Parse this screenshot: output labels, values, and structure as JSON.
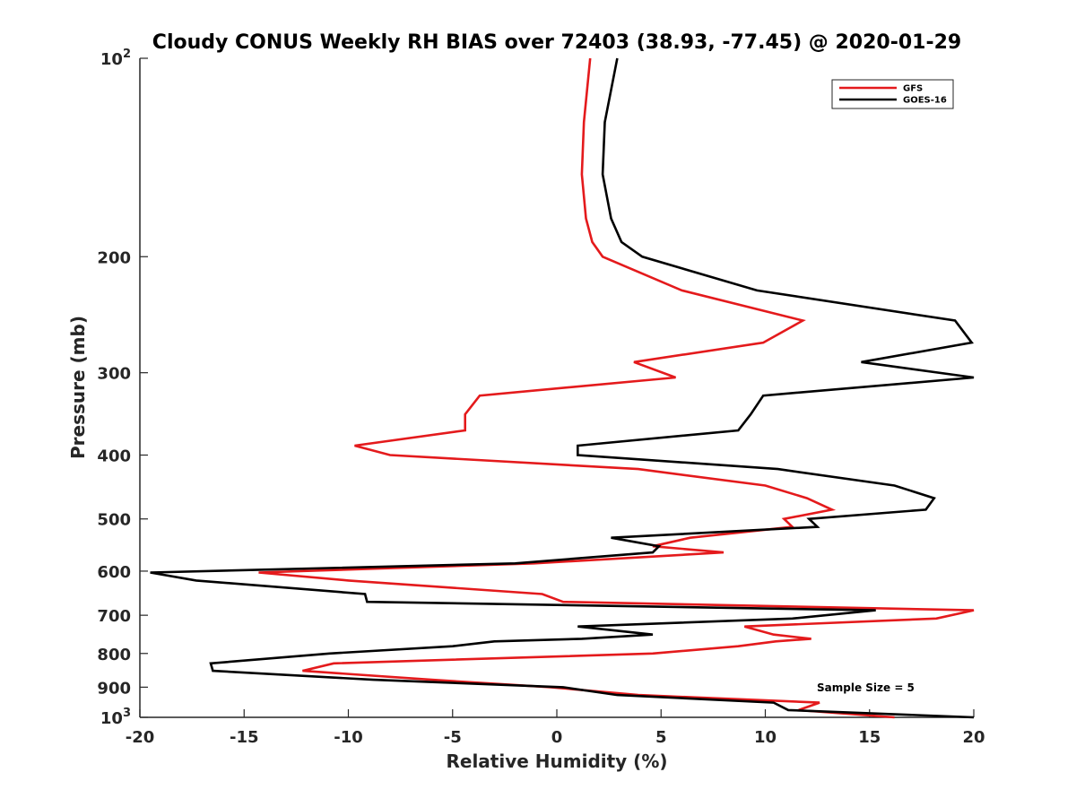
{
  "chart_data": {
    "type": "line",
    "title": "Cloudy CONUS Weekly RH BIAS over 72403 (38.93, -77.45) @ 2020-01-29",
    "xlabel": "Relative Humidity (%)",
    "ylabel": "Pressure (mb)",
    "xlim": [
      -20,
      20
    ],
    "ylim": [
      100,
      1000
    ],
    "y_scale": "log",
    "y_reversed": true,
    "grid": false,
    "legend_position": "top-right",
    "x_ticks": [
      -20,
      -15,
      -10,
      -5,
      0,
      5,
      10,
      15,
      20
    ],
    "x_tick_labels": [
      "-20",
      "-15",
      "-10",
      "-5",
      "0",
      "5",
      "10",
      "15",
      "20"
    ],
    "y_ticks": [
      100,
      200,
      300,
      400,
      500,
      600,
      700,
      800,
      900,
      1000
    ],
    "y_tick_labels": [
      {
        "base": "10",
        "exp": "2"
      },
      {
        "base": "200",
        "exp": ""
      },
      {
        "base": "300",
        "exp": ""
      },
      {
        "base": "400",
        "exp": ""
      },
      {
        "base": "500",
        "exp": ""
      },
      {
        "base": "600",
        "exp": ""
      },
      {
        "base": "700",
        "exp": ""
      },
      {
        "base": "800",
        "exp": ""
      },
      {
        "base": "900",
        "exp": ""
      },
      {
        "base": "10",
        "exp": "3"
      }
    ],
    "annotation": "Sample Size = 5",
    "series": [
      {
        "name": "GFS",
        "color": "#e41a1c",
        "points": [
          [
            1.6,
            100
          ],
          [
            1.3,
            125
          ],
          [
            1.2,
            150
          ],
          [
            1.4,
            175
          ],
          [
            1.7,
            190
          ],
          [
            2.2,
            200
          ],
          [
            6.0,
            225
          ],
          [
            11.8,
            250
          ],
          [
            9.9,
            270
          ],
          [
            3.7,
            289
          ],
          [
            5.7,
            305
          ],
          [
            -3.7,
            325
          ],
          [
            -4.4,
            347
          ],
          [
            -4.4,
            367
          ],
          [
            -9.7,
            387
          ],
          [
            -8.0,
            400
          ],
          [
            3.9,
            420
          ],
          [
            10.0,
            445
          ],
          [
            12.0,
            465
          ],
          [
            13.2,
            484
          ],
          [
            10.9,
            500
          ],
          [
            11.3,
            514
          ],
          [
            6.4,
            534
          ],
          [
            4.6,
            550
          ],
          [
            8.0,
            562
          ],
          [
            -1.1,
            584
          ],
          [
            -14.3,
            603
          ],
          [
            -10.0,
            620
          ],
          [
            -0.7,
            650
          ],
          [
            0.3,
            668
          ],
          [
            20.0,
            688
          ],
          [
            18.2,
            708
          ],
          [
            9.0,
            728
          ],
          [
            10.4,
            749
          ],
          [
            12.2,
            760
          ],
          [
            10.5,
            767
          ],
          [
            8.7,
            780
          ],
          [
            4.6,
            800
          ],
          [
            -10.7,
            828
          ],
          [
            -12.2,
            850
          ],
          [
            -6.0,
            877
          ],
          [
            -0.3,
            900
          ],
          [
            3.9,
            925
          ],
          [
            12.6,
            950
          ],
          [
            11.6,
            975
          ],
          [
            16.2,
            1000
          ]
        ]
      },
      {
        "name": "GOES-16",
        "color": "#000000",
        "points": [
          [
            2.9,
            100
          ],
          [
            2.3,
            125
          ],
          [
            2.2,
            150
          ],
          [
            2.6,
            175
          ],
          [
            3.1,
            190
          ],
          [
            4.1,
            200
          ],
          [
            9.6,
            225
          ],
          [
            19.1,
            250
          ],
          [
            19.9,
            270
          ],
          [
            14.6,
            289
          ],
          [
            20.0,
            305
          ],
          [
            9.9,
            325
          ],
          [
            9.3,
            347
          ],
          [
            8.7,
            367
          ],
          [
            1.0,
            387
          ],
          [
            1.0,
            400
          ],
          [
            10.6,
            420
          ],
          [
            16.2,
            445
          ],
          [
            18.1,
            465
          ],
          [
            17.7,
            484
          ],
          [
            12.1,
            500
          ],
          [
            12.5,
            514
          ],
          [
            2.6,
            534
          ],
          [
            4.9,
            550
          ],
          [
            4.6,
            562
          ],
          [
            -2.0,
            584
          ],
          [
            -19.5,
            603
          ],
          [
            -17.3,
            620
          ],
          [
            -9.2,
            650
          ],
          [
            -9.1,
            668
          ],
          [
            15.3,
            688
          ],
          [
            11.3,
            708
          ],
          [
            1.0,
            728
          ],
          [
            4.6,
            749
          ],
          [
            1.2,
            760
          ],
          [
            -3.0,
            767
          ],
          [
            -5.0,
            780
          ],
          [
            -10.9,
            800
          ],
          [
            -16.6,
            828
          ],
          [
            -16.5,
            850
          ],
          [
            -8.8,
            877
          ],
          [
            0.3,
            900
          ],
          [
            2.9,
            925
          ],
          [
            10.4,
            950
          ],
          [
            11.1,
            975
          ],
          [
            20.0,
            1000
          ]
        ]
      }
    ]
  }
}
